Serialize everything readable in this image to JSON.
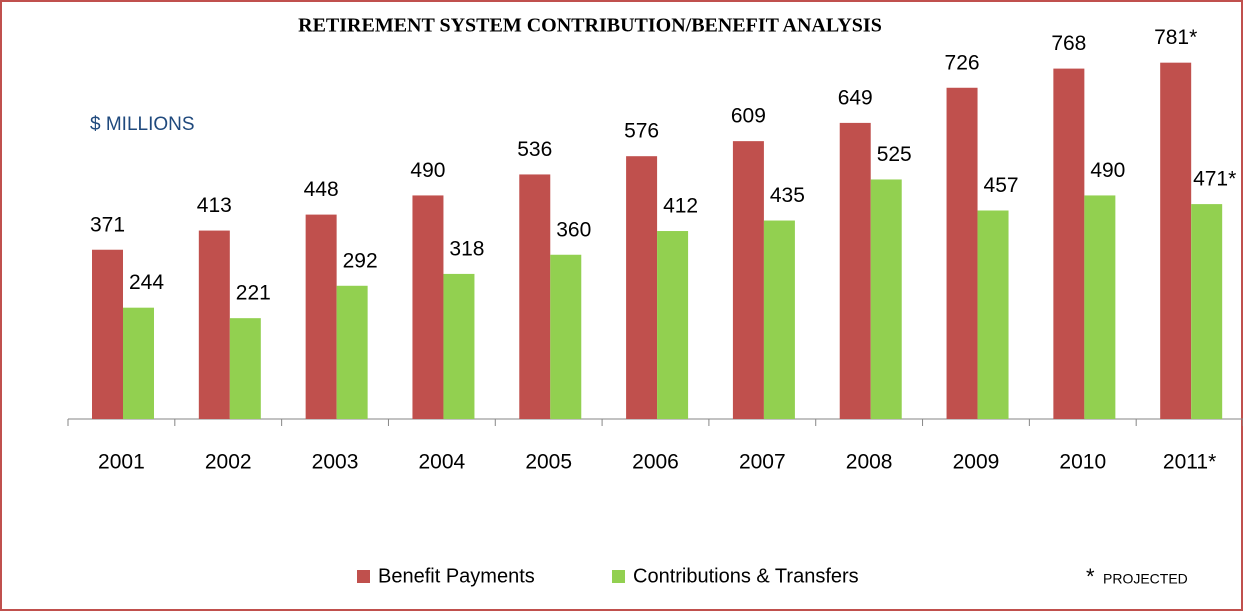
{
  "chart_data": {
    "type": "bar",
    "title": "RETIREMENT SYSTEM CONTRIBUTION/BENEFIT ANALYSIS",
    "annotations": [
      "$ MILLIONS",
      "*",
      "PROJECTED"
    ],
    "categories": [
      "2001",
      "2002",
      "2003",
      "2004",
      "2005",
      "2006",
      "2007",
      "2008",
      "2009",
      "2010",
      "2011*"
    ],
    "series": [
      {
        "name": "Benefit Payments",
        "color": "#c0504d",
        "values": [
          371,
          413,
          448,
          490,
          536,
          576,
          609,
          649,
          726,
          768,
          781
        ],
        "value_labels": [
          "371",
          "413",
          "448",
          "490",
          "536",
          "576",
          "609",
          "649",
          "726",
          "768",
          "781*"
        ]
      },
      {
        "name": "Contributions & Transfers",
        "color": "#92d050",
        "values": [
          244,
          221,
          292,
          318,
          360,
          412,
          435,
          525,
          457,
          490,
          471
        ],
        "value_labels": [
          "244",
          "221",
          "292",
          "318",
          "360",
          "412",
          "435",
          "525",
          "457",
          "490",
          "471*"
        ]
      }
    ],
    "ylim": [
      0,
      800
    ],
    "legend": "bottom"
  }
}
